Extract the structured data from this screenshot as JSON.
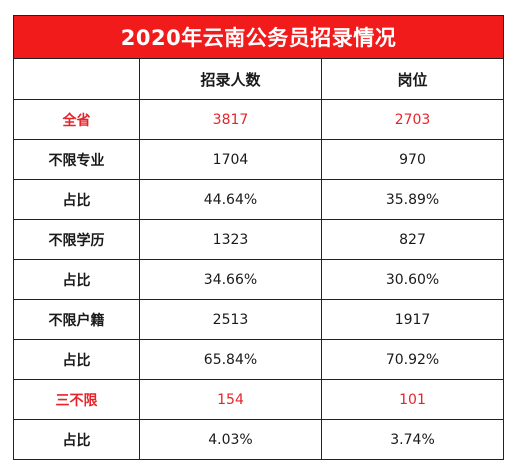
{
  "title": "2020年云南公务员招录情况",
  "headers": [
    "",
    "招录人数",
    "岗位"
  ],
  "rows": [
    {
      "label": "全省",
      "recruits": "3817",
      "positions": "2703"
    },
    {
      "label": "不限专业",
      "recruits": "1704",
      "positions": "970"
    },
    {
      "label": "占比",
      "recruits": "44.64%",
      "positions": "35.89%"
    },
    {
      "label": "不限学历",
      "recruits": "1323",
      "positions": "827"
    },
    {
      "label": "占比",
      "recruits": "34.66%",
      "positions": "30.60%"
    },
    {
      "label": "不限户籍",
      "recruits": "2513",
      "positions": "1917"
    },
    {
      "label": "占比",
      "recruits": "65.84%",
      "positions": "70.92%"
    },
    {
      "label": "三不限",
      "recruits": "154",
      "positions": "101"
    },
    {
      "label": "占比",
      "recruits": "4.03%",
      "positions": "3.74%"
    }
  ],
  "colors": {
    "title_bg": "#f21b1b",
    "title_text": "#ffffff",
    "highlight_text": "#e5252a",
    "border": "#222222"
  }
}
